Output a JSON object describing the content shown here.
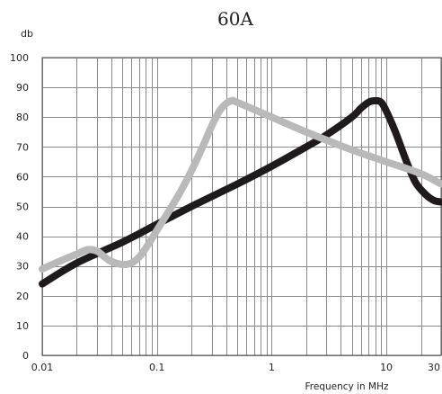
{
  "chart_data": {
    "type": "line",
    "title": "60A",
    "ylabel": "db",
    "xlabel": "Frequency in MHz",
    "x_scale": "log",
    "xlim": [
      0.01,
      30
    ],
    "ylim": [
      0,
      100
    ],
    "x_ticks": [
      {
        "value": 0.01,
        "label": "0.01"
      },
      {
        "value": 0.1,
        "label": "0.1"
      },
      {
        "value": 1,
        "label": "1"
      },
      {
        "value": 10,
        "label": "10"
      },
      {
        "value": 30,
        "label": "30"
      }
    ],
    "y_ticks": [
      0,
      10,
      20,
      30,
      40,
      50,
      60,
      70,
      80,
      90,
      100
    ],
    "grid": true,
    "series": [
      {
        "color": "#1f1a1b",
        "points": [
          [
            0.01,
            24
          ],
          [
            0.02,
            31
          ],
          [
            0.05,
            38
          ],
          [
            0.1,
            44
          ],
          [
            0.2,
            50
          ],
          [
            0.5,
            57.5
          ],
          [
            1,
            63.5
          ],
          [
            2,
            70
          ],
          [
            3,
            74
          ],
          [
            5,
            80
          ],
          [
            6,
            83
          ],
          [
            7,
            85
          ],
          [
            8,
            85.5
          ],
          [
            9,
            85
          ],
          [
            10,
            82
          ],
          [
            12,
            75
          ],
          [
            15,
            65
          ],
          [
            18,
            58
          ],
          [
            22,
            54
          ],
          [
            26,
            52
          ],
          [
            30,
            51.5
          ]
        ]
      },
      {
        "color": "#b9b9b9",
        "points": [
          [
            0.01,
            29
          ],
          [
            0.015,
            32
          ],
          [
            0.02,
            34
          ],
          [
            0.025,
            35.5
          ],
          [
            0.03,
            35
          ],
          [
            0.035,
            33
          ],
          [
            0.04,
            31.5
          ],
          [
            0.05,
            30.5
          ],
          [
            0.06,
            31
          ],
          [
            0.07,
            33
          ],
          [
            0.08,
            36
          ],
          [
            0.1,
            42
          ],
          [
            0.15,
            53
          ],
          [
            0.2,
            62
          ],
          [
            0.25,
            70
          ],
          [
            0.3,
            77
          ],
          [
            0.35,
            82
          ],
          [
            0.4,
            84.5
          ],
          [
            0.45,
            85.5
          ],
          [
            0.5,
            85
          ],
          [
            1,
            80
          ],
          [
            2,
            75
          ],
          [
            5,
            69
          ],
          [
            10,
            65
          ],
          [
            20,
            61
          ],
          [
            30,
            57.5
          ]
        ]
      }
    ]
  }
}
